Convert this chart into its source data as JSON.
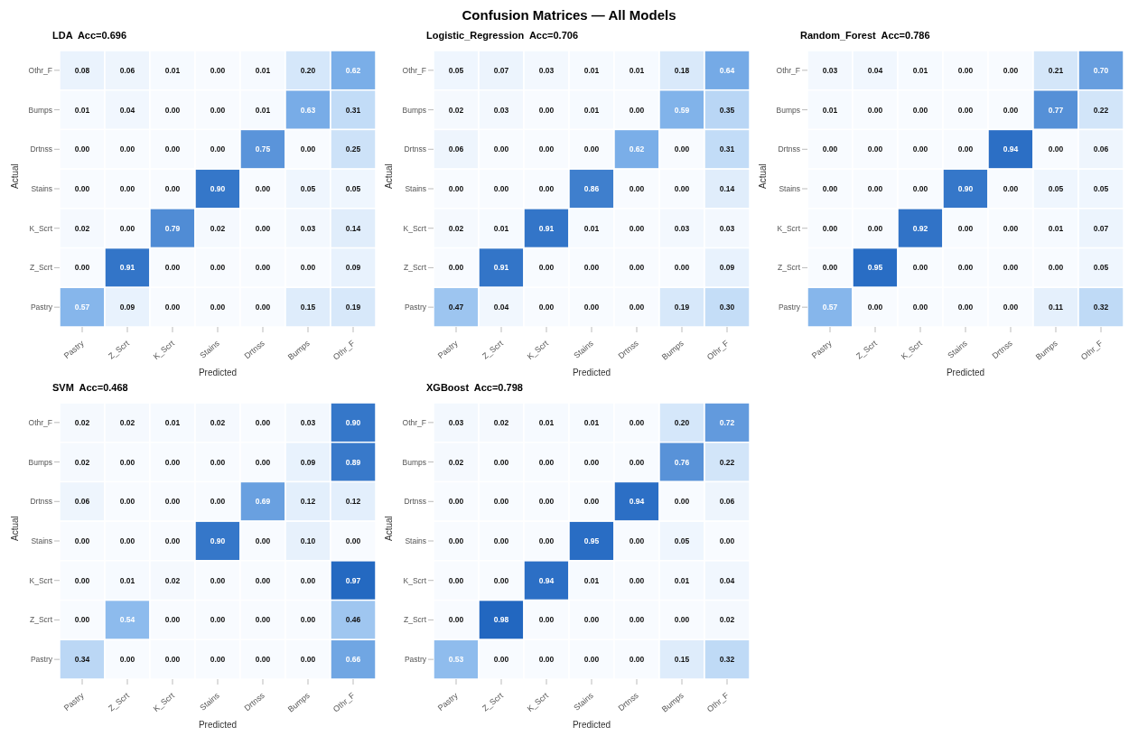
{
  "chart_data": [
    {
      "type": "heatmap",
      "title": "LDA  Acc=0.696",
      "annotations": [
        "Confusion Matrices — All Models"
      ],
      "xlabel": "Predicted",
      "ylabel": "Actual",
      "categories": [
        "Pastry",
        "Z_Scrt",
        "K_Scrt",
        "Stains",
        "Drtnss",
        "Bumps",
        "Othr_F"
      ],
      "y_categories": [
        "Othr_F",
        "Bumps",
        "Drtnss",
        "Stains",
        "K_Scrt",
        "Z_Scrt",
        "Pastry"
      ],
      "cells": [
        [
          0.08,
          0.06,
          0.01,
          0.0,
          0.01,
          0.2,
          0.62
        ],
        [
          0.01,
          0.04,
          0.0,
          0.0,
          0.01,
          0.63,
          0.31
        ],
        [
          0.0,
          0.0,
          0.0,
          0.0,
          0.75,
          0.0,
          0.25
        ],
        [
          0.0,
          0.0,
          0.0,
          0.9,
          0.0,
          0.05,
          0.05
        ],
        [
          0.02,
          0.0,
          0.79,
          0.02,
          0.0,
          0.03,
          0.14
        ],
        [
          0.0,
          0.91,
          0.0,
          0.0,
          0.0,
          0.0,
          0.09
        ],
        [
          0.57,
          0.09,
          0.0,
          0.0,
          0.0,
          0.15,
          0.19
        ]
      ],
      "cell_labels": [
        [
          "0.08",
          "0.06",
          "0.01",
          "0.00",
          "0.01",
          "0.20",
          "0.62"
        ],
        [
          "0.01",
          "0.04",
          "0.00",
          "0.00",
          "0.01",
          "0.63",
          "0.31"
        ],
        [
          "0.00",
          "0.00",
          "0.00",
          "0.00",
          "0.75",
          "0.00",
          "0.25"
        ],
        [
          "0.00",
          "0.00",
          "0.00",
          "0.90",
          "0.00",
          "0.05",
          "0.05"
        ],
        [
          "0.02",
          "0.00",
          "0.79",
          "0.02",
          "0.00",
          "0.03",
          "0.14"
        ],
        [
          "0.00",
          "0.91",
          "0.00",
          "0.00",
          "0.00",
          "0.00",
          "0.09"
        ],
        [
          "0.57",
          "0.09",
          "0.00",
          "0.00",
          "0.00",
          "0.15",
          "0.19"
        ]
      ]
    },
    {
      "type": "heatmap",
      "title": "Logistic_Regression  Acc=0.706",
      "xlabel": "Predicted",
      "ylabel": "Actual",
      "categories": [
        "Pastry",
        "Z_Scrt",
        "K_Scrt",
        "Stains",
        "Drtnss",
        "Bumps",
        "Othr_F"
      ],
      "y_categories": [
        "Othr_F",
        "Bumps",
        "Drtnss",
        "Stains",
        "K_Scrt",
        "Z_Scrt",
        "Pastry"
      ],
      "cells": [
        [
          0.05,
          0.07,
          0.03,
          0.01,
          0.01,
          0.18,
          0.64
        ],
        [
          0.02,
          0.03,
          0.0,
          0.01,
          0.0,
          0.59,
          0.35
        ],
        [
          0.06,
          0.0,
          0.0,
          0.0,
          0.62,
          0.0,
          0.31
        ],
        [
          0.0,
          0.0,
          0.0,
          0.86,
          0.0,
          0.0,
          0.14
        ],
        [
          0.02,
          0.01,
          0.91,
          0.01,
          0.0,
          0.03,
          0.03
        ],
        [
          0.0,
          0.91,
          0.0,
          0.0,
          0.0,
          0.0,
          0.09
        ],
        [
          0.47,
          0.04,
          0.0,
          0.0,
          0.0,
          0.19,
          0.3
        ]
      ],
      "cell_labels": [
        [
          "0.05",
          "0.07",
          "0.03",
          "0.01",
          "0.01",
          "0.18",
          "0.64"
        ],
        [
          "0.02",
          "0.03",
          "0.00",
          "0.01",
          "0.00",
          "0.59",
          "0.35"
        ],
        [
          "0.06",
          "0.00",
          "0.00",
          "0.00",
          "0.62",
          "0.00",
          "0.31"
        ],
        [
          "0.00",
          "0.00",
          "0.00",
          "0.86",
          "0.00",
          "0.00",
          "0.14"
        ],
        [
          "0.02",
          "0.01",
          "0.91",
          "0.01",
          "0.00",
          "0.03",
          "0.03"
        ],
        [
          "0.00",
          "0.91",
          "0.00",
          "0.00",
          "0.00",
          "0.00",
          "0.09"
        ],
        [
          "0.47",
          "0.04",
          "0.00",
          "0.00",
          "0.00",
          "0.19",
          "0.30"
        ]
      ]
    },
    {
      "type": "heatmap",
      "title": "Random_Forest  Acc=0.786",
      "xlabel": "Predicted",
      "ylabel": "Actual",
      "categories": [
        "Pastry",
        "Z_Scrt",
        "K_Scrt",
        "Stains",
        "Drtnss",
        "Bumps",
        "Othr_F"
      ],
      "y_categories": [
        "Othr_F",
        "Bumps",
        "Drtnss",
        "Stains",
        "K_Scrt",
        "Z_Scrt",
        "Pastry"
      ],
      "cells": [
        [
          0.03,
          0.04,
          0.01,
          0.0,
          0.0,
          0.21,
          0.7
        ],
        [
          0.01,
          0.0,
          0.0,
          0.0,
          0.0,
          0.77,
          0.22
        ],
        [
          0.0,
          0.0,
          0.0,
          0.0,
          0.94,
          0.0,
          0.06
        ],
        [
          0.0,
          0.0,
          0.0,
          0.9,
          0.0,
          0.05,
          0.05
        ],
        [
          0.0,
          0.0,
          0.92,
          0.0,
          0.0,
          0.01,
          0.07
        ],
        [
          0.0,
          0.95,
          0.0,
          0.0,
          0.0,
          0.0,
          0.05
        ],
        [
          0.57,
          0.0,
          0.0,
          0.0,
          0.0,
          0.11,
          0.32
        ]
      ],
      "cell_labels": [
        [
          "0.03",
          "0.04",
          "0.01",
          "0.00",
          "0.00",
          "0.21",
          "0.70"
        ],
        [
          "0.01",
          "0.00",
          "0.00",
          "0.00",
          "0.00",
          "0.77",
          "0.22"
        ],
        [
          "0.00",
          "0.00",
          "0.00",
          "0.00",
          "0.94",
          "0.00",
          "0.06"
        ],
        [
          "0.00",
          "0.00",
          "0.00",
          "0.90",
          "0.00",
          "0.05",
          "0.05"
        ],
        [
          "0.00",
          "0.00",
          "0.92",
          "0.00",
          "0.00",
          "0.01",
          "0.07"
        ],
        [
          "0.00",
          "0.95",
          "0.00",
          "0.00",
          "0.00",
          "0.00",
          "0.05"
        ],
        [
          "0.57",
          "0.00",
          "0.00",
          "0.00",
          "0.00",
          "0.11",
          "0.32"
        ]
      ]
    },
    {
      "type": "heatmap",
      "title": "SVM  Acc=0.468",
      "xlabel": "Predicted",
      "ylabel": "Actual",
      "categories": [
        "Pastry",
        "Z_Scrt",
        "K_Scrt",
        "Stains",
        "Drtnss",
        "Bumps",
        "Othr_F"
      ],
      "y_categories": [
        "Othr_F",
        "Bumps",
        "Drtnss",
        "Stains",
        "K_Scrt",
        "Z_Scrt",
        "Pastry"
      ],
      "cells": [
        [
          0.02,
          0.02,
          0.01,
          0.02,
          0.0,
          0.03,
          0.9
        ],
        [
          0.02,
          0.0,
          0.0,
          0.0,
          0.0,
          0.09,
          0.89
        ],
        [
          0.06,
          0.0,
          0.0,
          0.0,
          0.69,
          0.12,
          0.12
        ],
        [
          0.0,
          0.0,
          0.0,
          0.9,
          0.0,
          0.1,
          0.0
        ],
        [
          0.0,
          0.01,
          0.02,
          0.0,
          0.0,
          0.0,
          0.97
        ],
        [
          0.0,
          0.54,
          0.0,
          0.0,
          0.0,
          0.0,
          0.46
        ],
        [
          0.34,
          0.0,
          0.0,
          0.0,
          0.0,
          0.0,
          0.66
        ]
      ],
      "cell_labels": [
        [
          "0.02",
          "0.02",
          "0.01",
          "0.02",
          "0.00",
          "0.03",
          "0.90"
        ],
        [
          "0.02",
          "0.00",
          "0.00",
          "0.00",
          "0.00",
          "0.09",
          "0.89"
        ],
        [
          "0.06",
          "0.00",
          "0.00",
          "0.00",
          "0.69",
          "0.12",
          "0.12"
        ],
        [
          "0.00",
          "0.00",
          "0.00",
          "0.90",
          "0.00",
          "0.10",
          "0.00"
        ],
        [
          "0.00",
          "0.01",
          "0.02",
          "0.00",
          "0.00",
          "0.00",
          "0.97"
        ],
        [
          "0.00",
          "0.54",
          "0.00",
          "0.00",
          "0.00",
          "0.00",
          "0.46"
        ],
        [
          "0.34",
          "0.00",
          "0.00",
          "0.00",
          "0.00",
          "0.00",
          "0.66"
        ]
      ]
    },
    {
      "type": "heatmap",
      "title": "XGBoost  Acc=0.798",
      "xlabel": "Predicted",
      "ylabel": "Actual",
      "categories": [
        "Pastry",
        "Z_Scrt",
        "K_Scrt",
        "Stains",
        "Drtnss",
        "Bumps",
        "Othr_F"
      ],
      "y_categories": [
        "Othr_F",
        "Bumps",
        "Drtnss",
        "Stains",
        "K_Scrt",
        "Z_Scrt",
        "Pastry"
      ],
      "cells": [
        [
          0.03,
          0.02,
          0.01,
          0.01,
          0.0,
          0.2,
          0.72
        ],
        [
          0.02,
          0.0,
          0.0,
          0.0,
          0.0,
          0.76,
          0.22
        ],
        [
          0.0,
          0.0,
          0.0,
          0.0,
          0.94,
          0.0,
          0.06
        ],
        [
          0.0,
          0.0,
          0.0,
          0.95,
          0.0,
          0.05,
          0.0
        ],
        [
          0.0,
          0.0,
          0.94,
          0.01,
          0.0,
          0.01,
          0.04
        ],
        [
          0.0,
          0.98,
          0.0,
          0.0,
          0.0,
          0.0,
          0.02
        ],
        [
          0.53,
          0.0,
          0.0,
          0.0,
          0.0,
          0.15,
          0.32
        ]
      ],
      "cell_labels": [
        [
          "0.03",
          "0.02",
          "0.01",
          "0.01",
          "0.00",
          "0.20",
          "0.72"
        ],
        [
          "0.02",
          "0.00",
          "0.00",
          "0.00",
          "0.00",
          "0.76",
          "0.22"
        ],
        [
          "0.00",
          "0.00",
          "0.00",
          "0.00",
          "0.94",
          "0.00",
          "0.06"
        ],
        [
          "0.00",
          "0.00",
          "0.00",
          "0.95",
          "0.00",
          "0.05",
          "0.00"
        ],
        [
          "0.00",
          "0.00",
          "0.94",
          "0.01",
          "0.00",
          "0.01",
          "0.04"
        ],
        [
          "0.00",
          "0.98",
          "0.00",
          "0.00",
          "0.00",
          "0.00",
          "0.02"
        ],
        [
          "0.53",
          "0.00",
          "0.00",
          "0.00",
          "0.00",
          "0.15",
          "0.32"
        ]
      ]
    }
  ]
}
